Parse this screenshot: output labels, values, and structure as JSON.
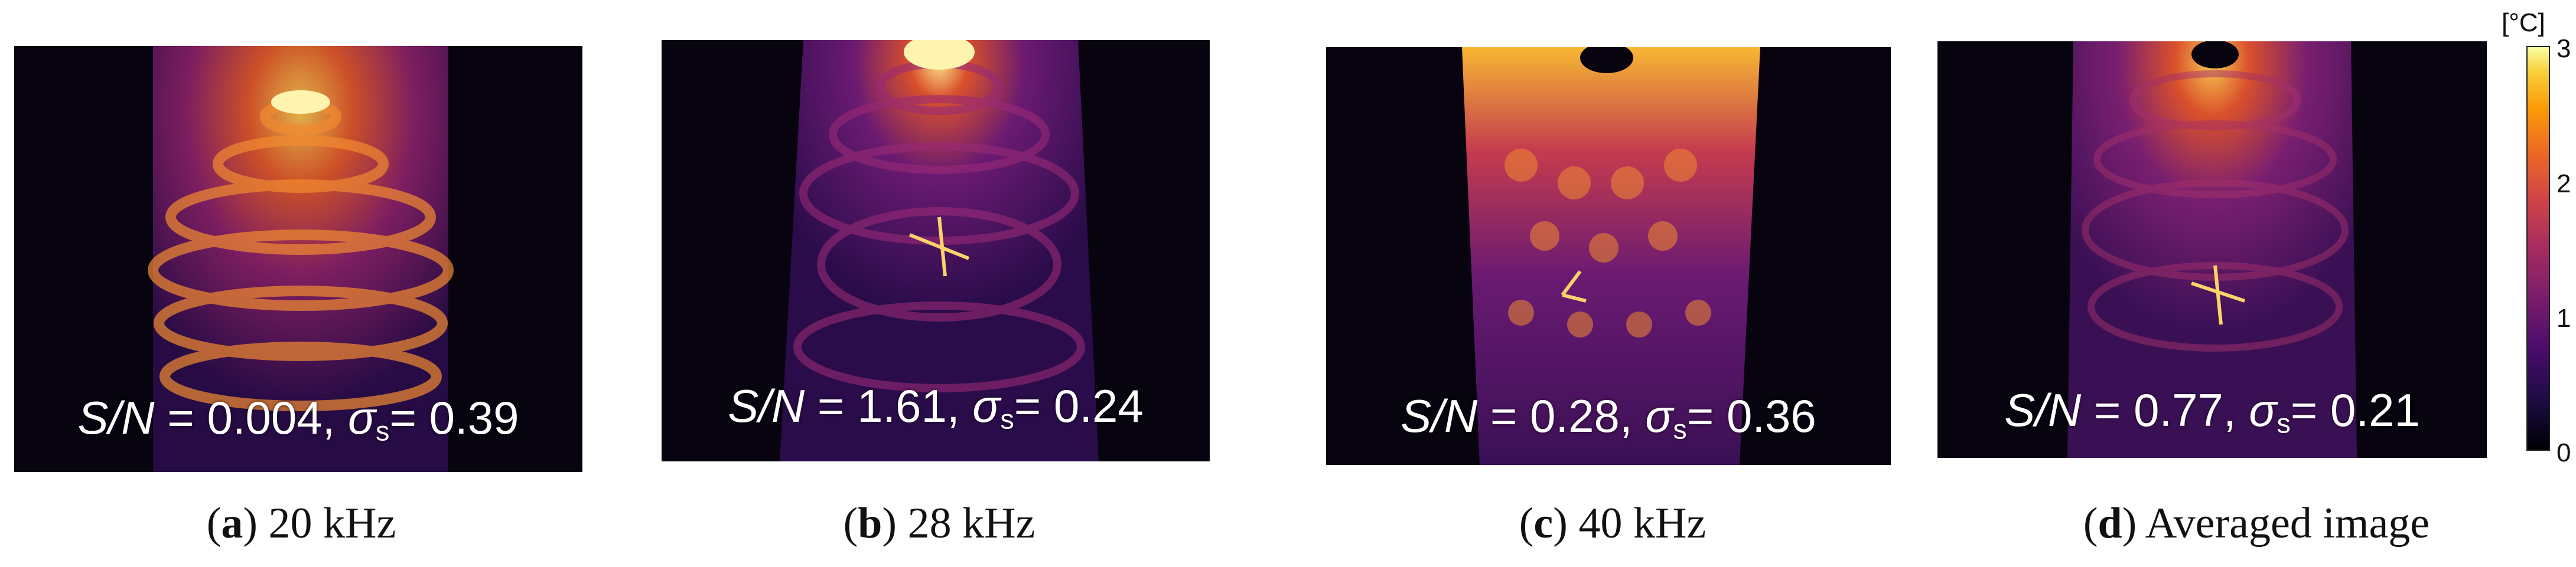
{
  "panels": [
    {
      "sn_label": "S/N",
      "sn_value": " = 0.004, ",
      "sigma": "σ",
      "sigma_sub": "s",
      "sigma_value": "= 0.39",
      "caption_letter": "a",
      "caption_text": " 20 kHz"
    },
    {
      "sn_label": "S/N",
      "sn_value": " = 1.61, ",
      "sigma": "σ",
      "sigma_sub": "s",
      "sigma_value": "= 0.24",
      "caption_letter": "b",
      "caption_text": " 28 kHz"
    },
    {
      "sn_label": "S/N",
      "sn_value": " = 0.28, ",
      "sigma": "σ",
      "sigma_sub": "s",
      "sigma_value": "= 0.36",
      "caption_letter": "c",
      "caption_text": " 40 kHz"
    },
    {
      "sn_label": "S/N",
      "sn_value": " = 0.77, ",
      "sigma": "σ",
      "sigma_sub": "s",
      "sigma_value": "= 0.21",
      "caption_letter": "d",
      "caption_text": " Averaged image"
    }
  ],
  "colorbar": {
    "unit": "[°C]",
    "ticks": [
      "3",
      "2",
      "1",
      "0"
    ],
    "colors": [
      "#000004",
      "#4a0c6b",
      "#a52c60",
      "#ed6925",
      "#fb9b06",
      "#fcffa4"
    ]
  }
}
